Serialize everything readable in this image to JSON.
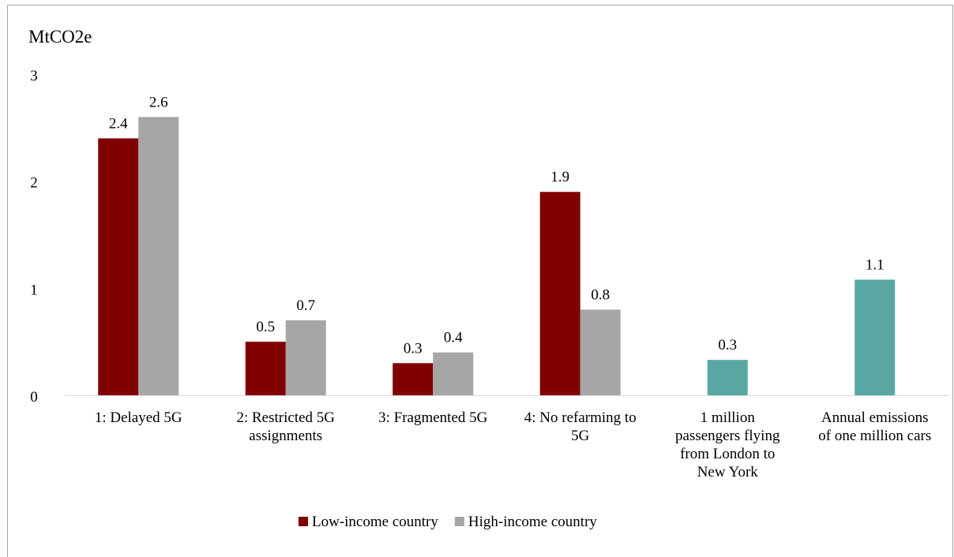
{
  "chart_data": {
    "type": "bar",
    "ylabel": "MtCO2e",
    "ylim": [
      0,
      3
    ],
    "yticks": [
      0,
      1,
      2,
      3
    ],
    "grid": false,
    "legend_position": "bottom",
    "categories": [
      [
        "1: Delayed 5G"
      ],
      [
        "2: Restricted 5G",
        "assignments"
      ],
      [
        "3: Fragmented 5G"
      ],
      [
        "4: No refarming to",
        "5G"
      ],
      [
        "1 million",
        "passengers flying",
        "from London to",
        "New York"
      ],
      [
        "Annual emissions",
        "of one million cars"
      ]
    ],
    "series": [
      {
        "name": "Low-income country",
        "color": "#800000",
        "values": [
          2.4,
          0.5,
          0.3,
          1.9,
          null,
          null
        ],
        "labels": [
          "2.4",
          "0.5",
          "0.3",
          "1.9",
          null,
          null
        ]
      },
      {
        "name": "High-income country",
        "color": "#a6a6a6",
        "values": [
          2.6,
          0.7,
          0.4,
          0.8,
          null,
          null
        ],
        "labels": [
          "2.6",
          "0.7",
          "0.4",
          "0.8",
          null,
          null
        ]
      },
      {
        "name": "",
        "color": "#58a7a3",
        "values": [
          null,
          null,
          null,
          null,
          0.33,
          1.08
        ],
        "labels": [
          null,
          null,
          null,
          null,
          "0.3",
          "1.1"
        ]
      }
    ]
  }
}
